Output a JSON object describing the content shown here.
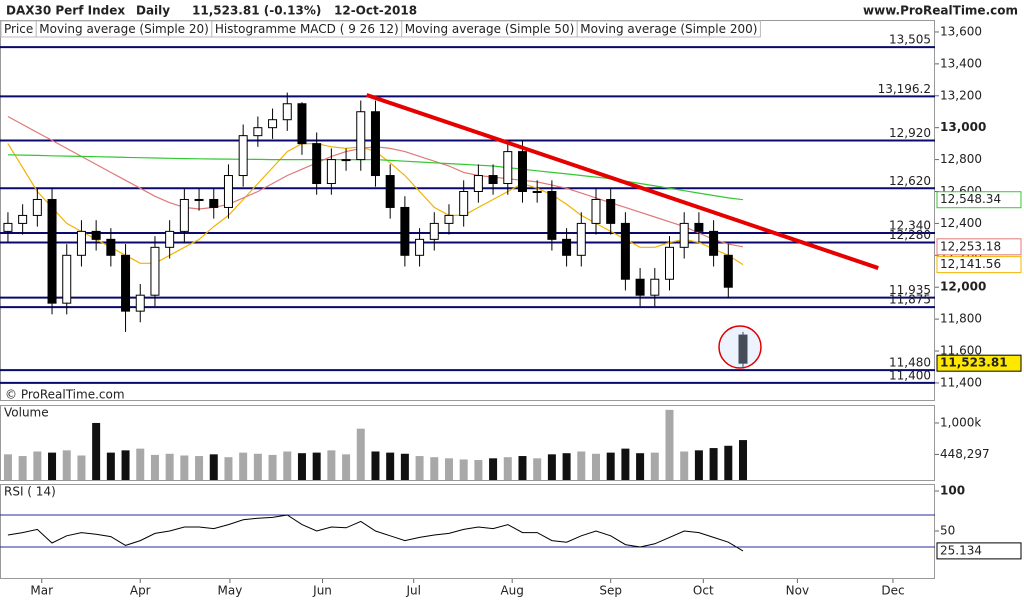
{
  "header": {
    "symbol": "DAX30 Perf Index",
    "period": "Daily",
    "quote": "11,523.81 (-0.13%)",
    "date": "12-Oct-2018",
    "site": "www.ProRealTime.com"
  },
  "copyright": "© ProRealTime.com",
  "chart_data": [
    {
      "type": "candlestick",
      "categories": [
        null,
        null,
        null,
        null,
        null,
        null,
        null,
        null,
        null,
        null,
        null,
        null,
        null,
        null,
        null,
        null,
        null,
        null,
        null,
        null,
        null,
        null,
        null,
        null,
        null,
        null,
        null,
        null,
        null,
        null,
        null,
        null,
        null,
        null,
        null,
        null,
        null,
        null,
        null,
        null,
        null,
        null,
        null,
        null,
        null,
        null,
        null,
        null,
        null,
        null,
        null
      ],
      "xlim": [
        -0.54,
        63.06
      ],
      "xticks": [
        {
          "value": 2.3,
          "label": "Mar"
        },
        {
          "value": 9.0,
          "label": "Apr"
        },
        {
          "value": 15.1,
          "label": "May"
        },
        {
          "value": 21.4,
          "label": "Jun"
        },
        {
          "value": 27.6,
          "label": "Jul"
        },
        {
          "value": 34.3,
          "label": "Aug"
        },
        {
          "value": 41.0,
          "label": "Sep"
        },
        {
          "value": 47.3,
          "label": "Oct"
        },
        {
          "value": 53.7,
          "label": "Nov"
        },
        {
          "value": 60.2,
          "label": "Dec"
        }
      ],
      "ylim": [
        11293,
        13675
      ],
      "yticks": [
        {
          "value": 11400,
          "label": "11,400"
        },
        {
          "value": 11600,
          "label": "11,600"
        },
        {
          "value": 11800,
          "label": "11,800"
        },
        {
          "value": 12000,
          "label": "12,000"
        },
        {
          "value": 12200,
          "label": "12,200"
        },
        {
          "value": 12400,
          "label": "12,400"
        },
        {
          "value": 12600,
          "label": "12,600"
        },
        {
          "value": 12800,
          "label": "12,800"
        },
        {
          "value": 13000,
          "label": "13,000"
        },
        {
          "value": 13200,
          "label": "13,200"
        },
        {
          "value": 13400,
          "label": "13,400"
        },
        {
          "value": 13600,
          "label": "13,600"
        }
      ],
      "ohlc": {
        "name": "Price",
        "open": [
          12350,
          12400,
          12450,
          12550,
          11900,
          12200,
          12350,
          12300,
          12200,
          11850,
          11950,
          12250,
          12350,
          12550,
          12550,
          12500,
          12700,
          12950,
          13000,
          13050,
          13150,
          12900,
          12650,
          12800,
          12800,
          13100,
          12700,
          12500,
          12200,
          12300,
          12400,
          12450,
          12600,
          12700,
          12650,
          12850,
          12600,
          12600,
          12300,
          12200,
          12400,
          12550,
          12400,
          12050,
          11950,
          12050,
          12250,
          12400,
          12350,
          12200,
          11700
        ],
        "high": [
          12470,
          12520,
          12620,
          12620,
          12270,
          12420,
          12420,
          12370,
          12270,
          12020,
          12320,
          12420,
          12620,
          12620,
          12620,
          12770,
          13020,
          13070,
          13120,
          13220,
          13160,
          12970,
          12870,
          12870,
          13170,
          13170,
          12770,
          12570,
          12370,
          12470,
          12520,
          12670,
          12770,
          12770,
          12920,
          12920,
          12670,
          12670,
          12370,
          12470,
          12620,
          12620,
          12470,
          12120,
          12120,
          12320,
          12470,
          12470,
          12420,
          12270,
          11720
        ],
        "low": [
          12280,
          12330,
          12380,
          11830,
          11830,
          12130,
          12230,
          12130,
          11720,
          11780,
          11880,
          12180,
          12280,
          12480,
          12430,
          12430,
          12630,
          12880,
          12930,
          12980,
          12830,
          12580,
          12580,
          12730,
          12730,
          12630,
          12430,
          12130,
          12130,
          12230,
          12330,
          12380,
          12530,
          12580,
          12580,
          12530,
          12530,
          12230,
          12130,
          12130,
          12330,
          12330,
          11980,
          11880,
          11880,
          11980,
          12180,
          12280,
          12130,
          11930,
          11500
        ],
        "close": [
          12400,
          12450,
          12550,
          11900,
          12200,
          12350,
          12300,
          12200,
          11850,
          11950,
          12250,
          12350,
          12550,
          12550,
          12500,
          12700,
          12950,
          13000,
          13050,
          13150,
          12900,
          12650,
          12800,
          12800,
          13100,
          12700,
          12500,
          12200,
          12300,
          12400,
          12450,
          12600,
          12700,
          12650,
          12850,
          12600,
          12600,
          12300,
          12200,
          12400,
          12550,
          12400,
          12050,
          11950,
          12050,
          12250,
          12400,
          12350,
          12200,
          12000,
          11523.81
        ],
        "value_labels": [
          null,
          null,
          null,
          null,
          null,
          null,
          null,
          null,
          null,
          null,
          null,
          null,
          null,
          null,
          null,
          null,
          null,
          null,
          null,
          null,
          null,
          null,
          null,
          null,
          null,
          null,
          null,
          null,
          null,
          null,
          null,
          null,
          null,
          null,
          null,
          null,
          null,
          null,
          null,
          null,
          null,
          null,
          null,
          null,
          null,
          null,
          null,
          null,
          null,
          null,
          "11,523.81"
        ]
      },
      "indicator": "Histogramme MACD ( 9 26 12)",
      "series": [
        {
          "name": "Moving average (Simple 20)",
          "color": "#f0b400",
          "values": [
            12900,
            12750,
            12600,
            12500,
            12400,
            12350,
            12300,
            12250,
            12200,
            12150,
            12150,
            12200,
            12250,
            12300,
            12380,
            12450,
            12550,
            12650,
            12750,
            12850,
            12900,
            12900,
            12880,
            12870,
            12880,
            12850,
            12780,
            12700,
            12600,
            12500,
            12450,
            12450,
            12500,
            12550,
            12600,
            12650,
            12620,
            12580,
            12520,
            12450,
            12400,
            12350,
            12300,
            12250,
            12250,
            12280,
            12300,
            12280,
            12240,
            12200,
            12141.56
          ],
          "value_labels": [
            null,
            null,
            null,
            null,
            null,
            null,
            null,
            null,
            null,
            null,
            null,
            null,
            null,
            null,
            null,
            null,
            null,
            null,
            null,
            null,
            null,
            null,
            null,
            null,
            null,
            null,
            null,
            null,
            null,
            null,
            null,
            null,
            null,
            null,
            null,
            null,
            null,
            null,
            null,
            null,
            null,
            null,
            null,
            null,
            null,
            null,
            null,
            null,
            null,
            null,
            "12,141.56"
          ]
        },
        {
          "name": "Moving average (Simple 50)",
          "color": "#e07878",
          "values": [
            13070,
            13020,
            12970,
            12920,
            12870,
            12820,
            12770,
            12720,
            12670,
            12620,
            12570,
            12530,
            12500,
            12490,
            12500,
            12520,
            12560,
            12600,
            12650,
            12700,
            12740,
            12780,
            12820,
            12850,
            12870,
            12880,
            12870,
            12850,
            12820,
            12790,
            12760,
            12720,
            12700,
            12690,
            12680,
            12670,
            12660,
            12640,
            12620,
            12590,
            12560,
            12530,
            12500,
            12470,
            12440,
            12410,
            12380,
            12340,
            12300,
            12270,
            12253.18
          ],
          "value_labels": [
            null,
            null,
            null,
            null,
            null,
            null,
            null,
            null,
            null,
            null,
            null,
            null,
            null,
            null,
            null,
            null,
            null,
            null,
            null,
            null,
            null,
            null,
            null,
            null,
            null,
            null,
            null,
            null,
            null,
            null,
            null,
            null,
            null,
            null,
            null,
            null,
            null,
            null,
            null,
            null,
            null,
            null,
            null,
            null,
            null,
            null,
            null,
            null,
            null,
            null,
            "12,253.18"
          ]
        },
        {
          "name": "Moving average (Simple 200)",
          "color": "#33c833",
          "values": [
            12830,
            12828,
            12826,
            12824,
            12822,
            12820,
            12818,
            12816,
            12814,
            12812,
            12810,
            12808,
            12806,
            12805,
            12804,
            12803,
            12802,
            12801,
            12800,
            12800,
            12800,
            12800,
            12800,
            12800,
            12800,
            12800,
            12795,
            12790,
            12785,
            12780,
            12775,
            12770,
            12765,
            12760,
            12750,
            12740,
            12730,
            12720,
            12710,
            12700,
            12690,
            12680,
            12665,
            12650,
            12635,
            12620,
            12605,
            12590,
            12575,
            12560,
            12548.34
          ],
          "value_labels": [
            null,
            null,
            null,
            null,
            null,
            null,
            null,
            null,
            null,
            null,
            null,
            null,
            null,
            null,
            null,
            null,
            null,
            null,
            null,
            null,
            null,
            null,
            null,
            null,
            null,
            null,
            null,
            null,
            null,
            null,
            null,
            null,
            null,
            null,
            null,
            null,
            null,
            null,
            null,
            null,
            null,
            null,
            null,
            null,
            null,
            null,
            null,
            null,
            null,
            null,
            "12,548.34"
          ]
        }
      ],
      "levels": [
        {
          "value": 13505,
          "label": "13,505"
        },
        {
          "value": 13196.2,
          "label": "13,196.2"
        },
        {
          "value": 12920,
          "label": "12,920"
        },
        {
          "value": 12620,
          "label": "12,620"
        },
        {
          "value": 12340,
          "label": "12,340"
        },
        {
          "value": 12280,
          "label": "12,280"
        },
        {
          "value": 11935,
          "label": "11,935"
        },
        {
          "value": 11875,
          "label": "11,875"
        },
        {
          "value": 11480,
          "label": "11,480"
        },
        {
          "value": 11400,
          "label": "11,400"
        }
      ],
      "level_color": "#0a0a6e",
      "trendline": {
        "color": "#e60000",
        "x": [
          24.4,
          59.2
        ],
        "y": [
          13205,
          12120
        ]
      }
    },
    {
      "type": "bar",
      "title": "Volume",
      "values": [
        450000,
        420000,
        500000,
        480000,
        520000,
        430000,
        1000000,
        480000,
        520000,
        550000,
        440000,
        460000,
        430000,
        420000,
        450000,
        400000,
        480000,
        460000,
        440000,
        500000,
        470000,
        480000,
        520000,
        450000,
        900000,
        500000,
        480000,
        460000,
        420000,
        400000,
        380000,
        360000,
        350000,
        380000,
        400000,
        420000,
        380000,
        450000,
        470000,
        500000,
        460000,
        480000,
        550000,
        470000,
        480000,
        1230000,
        500000,
        520000,
        560000,
        600000,
        700000
      ],
      "ylim": [
        0,
        1315000
      ],
      "yticks": [
        {
          "value": 1000000,
          "label": "1,000k"
        },
        {
          "value": 448297,
          "label": "448,297"
        }
      ]
    },
    {
      "type": "line",
      "title": "RSI ( 14)",
      "color": "#000000",
      "values": [
        45,
        48,
        52,
        35,
        44,
        48,
        46,
        43,
        32,
        38,
        47,
        50,
        55,
        55,
        53,
        58,
        64,
        66,
        67,
        70,
        58,
        50,
        55,
        54,
        62,
        50,
        44,
        38,
        42,
        45,
        47,
        52,
        55,
        53,
        58,
        48,
        48,
        38,
        36,
        44,
        50,
        44,
        33,
        30,
        34,
        42,
        50,
        48,
        42,
        36,
        25.134
      ],
      "ylim": [
        -8.75,
        108.75
      ],
      "yticks": [
        100,
        50
      ],
      "levels": [
        70,
        30
      ],
      "level_color": "#2a2aa0"
    }
  ]
}
